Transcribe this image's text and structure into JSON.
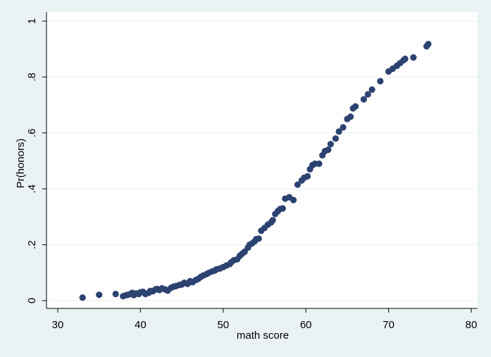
{
  "chart_data": {
    "type": "scatter",
    "xlabel": "math score",
    "ylabel": "Pr(honors)",
    "xlim": [
      30,
      80
    ],
    "ylim": [
      0,
      1
    ],
    "xticks": [
      30,
      40,
      50,
      60,
      70,
      80
    ],
    "xtick_labels": [
      "30",
      "40",
      "50",
      "60",
      "70",
      "80"
    ],
    "yticks": [
      0,
      0.2,
      0.4,
      0.6,
      0.8,
      1
    ],
    "ytick_labels": [
      "0",
      ".2",
      ".4",
      ".6",
      ".8",
      "1"
    ],
    "grid": "horizontal",
    "colors": {
      "marker": "#2c4270",
      "plot_background": "#ffffff",
      "outer_background": "#eaf2f3",
      "grid": "#e8eef0"
    },
    "series": [
      {
        "x": [
          33,
          35,
          37,
          37.9,
          38.3,
          38.6,
          39,
          39.2,
          39.5,
          39.8,
          40,
          40.3,
          40.6,
          41,
          41.2,
          41.5,
          41.8,
          42,
          42.3,
          42.6,
          43,
          43.3,
          43.7,
          44,
          44.3,
          44.7,
          45,
          45.3,
          45.7,
          46,
          46.3,
          46.7,
          47,
          47.3,
          47.6,
          48,
          48.3,
          48.7,
          49,
          49.2,
          49.6,
          50,
          50.4,
          50.8,
          51,
          51.3,
          51.7,
          52,
          52.3,
          52.6,
          53,
          53.2,
          53.5,
          53.8,
          54,
          54.3,
          54.6,
          55,
          55.4,
          55.8,
          56,
          56.3,
          56.6,
          56.9,
          57.2,
          57.5,
          58,
          58.5,
          59,
          59.5,
          59.8,
          60.2,
          60.5,
          60.8,
          61.1,
          61.6,
          62,
          62.3,
          62.7,
          63,
          63.6,
          64,
          64.5,
          65,
          65.4,
          65.7,
          66,
          67,
          67.5,
          68,
          69,
          70,
          70.5,
          71,
          71.4,
          71.8,
          72,
          73,
          74.6,
          74.8
        ],
        "y": [
          0.011,
          0.021,
          0.024,
          0.016,
          0.02,
          0.022,
          0.028,
          0.02,
          0.026,
          0.024,
          0.03,
          0.032,
          0.024,
          0.028,
          0.035,
          0.034,
          0.04,
          0.042,
          0.038,
          0.044,
          0.04,
          0.036,
          0.046,
          0.05,
          0.052,
          0.056,
          0.058,
          0.064,
          0.06,
          0.07,
          0.066,
          0.074,
          0.078,
          0.085,
          0.09,
          0.095,
          0.1,
          0.105,
          0.108,
          0.112,
          0.115,
          0.12,
          0.126,
          0.131,
          0.138,
          0.145,
          0.148,
          0.16,
          0.168,
          0.175,
          0.19,
          0.2,
          0.205,
          0.212,
          0.22,
          0.222,
          0.25,
          0.26,
          0.272,
          0.28,
          0.288,
          0.31,
          0.32,
          0.328,
          0.33,
          0.365,
          0.37,
          0.36,
          0.415,
          0.43,
          0.44,
          0.445,
          0.47,
          0.485,
          0.49,
          0.49,
          0.52,
          0.535,
          0.54,
          0.56,
          0.58,
          0.605,
          0.62,
          0.65,
          0.658,
          0.688,
          0.695,
          0.72,
          0.738,
          0.755,
          0.785,
          0.82,
          0.83,
          0.84,
          0.85,
          0.86,
          0.865,
          0.87,
          0.91,
          0.918
        ]
      }
    ]
  }
}
